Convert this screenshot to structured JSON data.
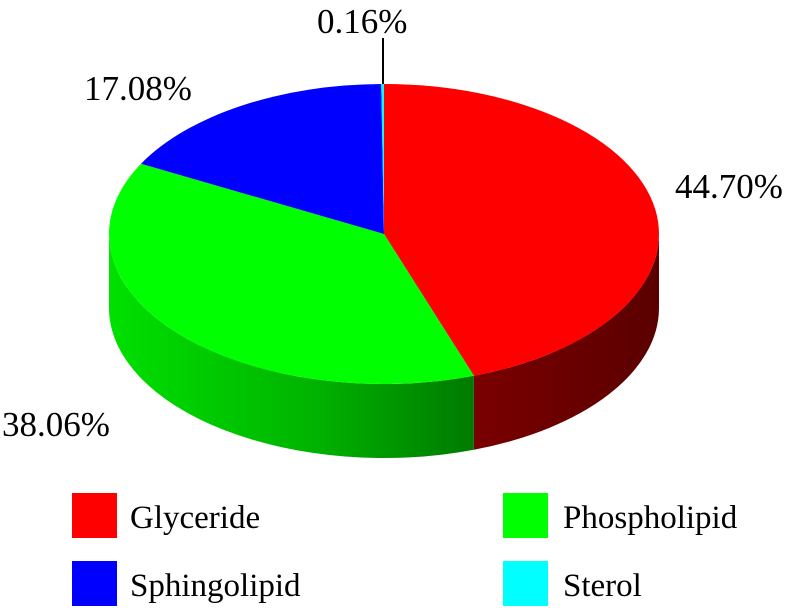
{
  "chart_data": {
    "type": "pie",
    "style": "3d",
    "title": "",
    "slices": [
      {
        "label": "Glyceride",
        "value": 44.7,
        "display": "44.70%",
        "color": "#ff0000",
        "side_color": "#660000"
      },
      {
        "label": "Phospholipid",
        "value": 38.06,
        "display": "38.06%",
        "color": "#00ff00",
        "side_color": "#00a000"
      },
      {
        "label": "Sphingolipid",
        "value": 17.08,
        "display": "17.08%",
        "color": "#0000ff",
        "side_color": "#000099"
      },
      {
        "label": "Sterol",
        "value": 0.16,
        "display": "0.16%",
        "color": "#00ffff",
        "side_color": "#009999"
      }
    ],
    "legend": {
      "placement": "bottom",
      "entries": [
        "Glyceride",
        "Phospholipid",
        "Sphingolipid",
        "Sterol"
      ]
    }
  }
}
